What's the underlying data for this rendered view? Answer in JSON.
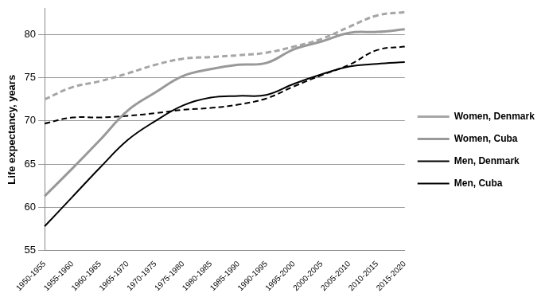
{
  "chart_data": {
    "type": "line",
    "y_label": "Life expectancy, years",
    "categories": [
      "1950-1955",
      "1955-1960",
      "1960-1965",
      "1965-1970",
      "1970-1975",
      "1975-1980",
      "1980-1985",
      "1985-1990",
      "1990-1995",
      "1995-2000",
      "2000-2005",
      "2005-2010",
      "2010-2015",
      "2015-2020"
    ],
    "series": [
      {
        "name": "Women, Denmark",
        "color": "#a6a6a6",
        "line_style": "dashed",
        "values": [
          72.5,
          73.9,
          74.6,
          75.5,
          76.5,
          77.2,
          77.4,
          77.6,
          77.9,
          78.6,
          79.5,
          80.9,
          82.2,
          82.6
        ]
      },
      {
        "name": "Women, Cuba",
        "color": "#999999",
        "line_style": "solid",
        "values": [
          61.3,
          64.5,
          67.8,
          71.2,
          73.3,
          75.2,
          76.0,
          76.5,
          76.7,
          78.3,
          79.2,
          80.2,
          80.3,
          80.6
        ]
      },
      {
        "name": "Men, Denmark",
        "color": "#000000",
        "line_style": "dashed",
        "values": [
          69.7,
          70.4,
          70.4,
          70.6,
          70.9,
          71.3,
          71.5,
          71.9,
          72.6,
          74.0,
          75.3,
          76.5,
          78.2,
          78.6
        ]
      },
      {
        "name": "Men, Cuba",
        "color": "#000000",
        "line_style": "solid",
        "values": [
          57.8,
          61.2,
          64.6,
          67.8,
          70.0,
          71.8,
          72.7,
          72.9,
          73.0,
          74.3,
          75.4,
          76.3,
          76.6,
          76.8
        ]
      }
    ],
    "ylim": [
      55,
      83
    ],
    "yticks": [
      55,
      60,
      65,
      70,
      75,
      80
    ],
    "grid": true,
    "legend": "right"
  }
}
